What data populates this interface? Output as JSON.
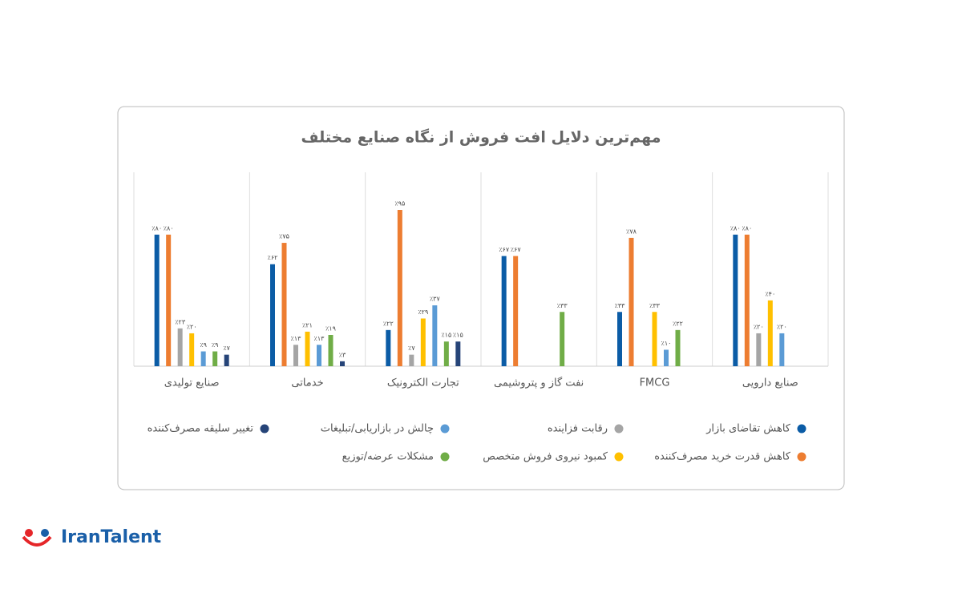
{
  "chart_data": {
    "type": "bar",
    "title": "مهم‌ترین دلایل افت فروش از نگاه صنایع مختلف",
    "categories": [
      "صنایع تولیدی",
      "خدماتی",
      "تجارت الکترونیک",
      "نفت گاز و پتروشیمی",
      "FMCG",
      "صنایع دارویی"
    ],
    "series": [
      {
        "name": "کاهش تقاضای بازار",
        "color": "#0b5ca6",
        "values": [
          80,
          62,
          22,
          67,
          33,
          80
        ],
        "value_labels": [
          "٪۸۰",
          "٪۶۲",
          "٪۲۲",
          "٪۶۷",
          "٪۳۳",
          "٪۸۰"
        ]
      },
      {
        "name": "کاهش قدرت خرید مصرف‌کننده",
        "color": "#ed7d31",
        "values": [
          80,
          75,
          95,
          67,
          78,
          80
        ],
        "value_labels": [
          "٪۸۰",
          "٪۷۵",
          "٪۹۵",
          "٪۶۷",
          "٪۷۸",
          "٪۸۰"
        ]
      },
      {
        "name": "رقابت فزاینده",
        "color": "#a5a5a5",
        "values": [
          23,
          13,
          7,
          null,
          null,
          20
        ],
        "value_labels": [
          "٪۲۳",
          "٪۱۳",
          "٪۷",
          null,
          null,
          "٪۲۰"
        ]
      },
      {
        "name": "کمبود نیروی فروش متخصص",
        "color": "#ffc000",
        "values": [
          20,
          21,
          29,
          null,
          33,
          40
        ],
        "value_labels": [
          "٪۲۰",
          "٪۲۱",
          "٪۲۹",
          null,
          "٪۳۳",
          "٪۴۰"
        ]
      },
      {
        "name": "چالش در بازاریابی/تبلیغات",
        "color": "#5b9bd5",
        "values": [
          9,
          13,
          37,
          null,
          10,
          20
        ],
        "value_labels": [
          "٪۹",
          "٪۱۳",
          "٪۳۷",
          null,
          "٪۱۰",
          "٪۲۰"
        ]
      },
      {
        "name": "مشکلات عرضه/توزیع",
        "color": "#70ad47",
        "values": [
          9,
          19,
          15,
          33,
          22,
          null
        ],
        "value_labels": [
          "٪۹",
          "٪۱۹",
          "٪۱۵",
          "٪۳۳",
          "٪۲۲",
          null
        ]
      },
      {
        "name": "تغییر سلیقه مصرف‌کننده",
        "color": "#264478",
        "values": [
          7,
          3,
          15,
          null,
          null,
          null
        ],
        "value_labels": [
          "٪۷",
          "٪۳",
          "٪۱۵",
          null,
          null,
          null
        ]
      }
    ]
  },
  "logo": "IranTalent"
}
